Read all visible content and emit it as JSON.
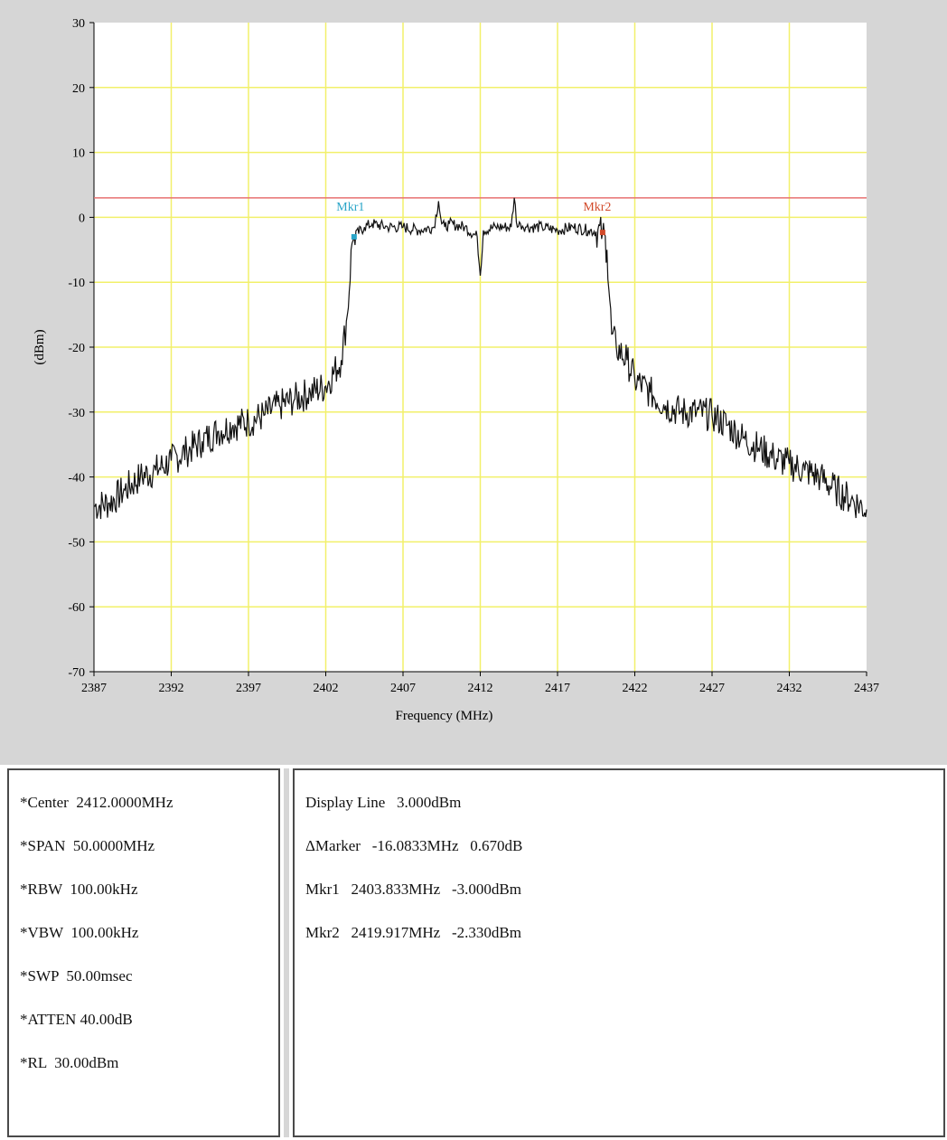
{
  "chart_data": {
    "type": "line",
    "xlabel": "Frequency (MHz)",
    "ylabel": "(dBm)",
    "xlim": [
      2387,
      2437
    ],
    "ylim": [
      -70,
      30
    ],
    "x_ticks": [
      "2387",
      "2392",
      "2397",
      "2402",
      "2407",
      "2412",
      "2417",
      "2422",
      "2427",
      "2432",
      "2437"
    ],
    "y_ticks": [
      "30",
      "20",
      "10",
      "0",
      "-10",
      "-20",
      "-30",
      "-40",
      "-50",
      "-60",
      "-70"
    ],
    "grid": true,
    "colors": {
      "grid": "#f2f06a",
      "trace": "#111111",
      "display_line": "#e87070",
      "marker1": "#2aa5c8",
      "marker2": "#d24a2a",
      "plot_bg": "#ffffff"
    },
    "display_line_dbm": 3.0,
    "markers": [
      {
        "label": "Mkr1",
        "x": 2403.833,
        "y": -3.0
      },
      {
        "label": "Mkr2",
        "x": 2419.917,
        "y": -2.33
      }
    ],
    "series": [
      {
        "x": [
          2387,
          2388,
          2389,
          2390,
          2391,
          2392,
          2393,
          2394,
          2395,
          2396,
          2397,
          2398,
          2399,
          2400,
          2401,
          2402,
          2403,
          2403.4,
          2403.7,
          2403.833,
          2404.5,
          2405,
          2406,
          2407,
          2408,
          2409,
          2409.3,
          2409.5,
          2409.7,
          2410,
          2411,
          2411.8,
          2412,
          2412.2,
          2413,
          2414,
          2414.2,
          2414.4,
          2414.6,
          2415,
          2416,
          2417,
          2418,
          2419,
          2419.917,
          2420.2,
          2420.5,
          2420.8,
          2421.5,
          2422,
          2423,
          2424,
          2425,
          2426,
          2427,
          2428,
          2429,
          2430,
          2431,
          2432,
          2433,
          2434,
          2435,
          2436,
          2437
        ],
        "y": [
          -44.5,
          -44,
          -42,
          -40,
          -39,
          -37.5,
          -36,
          -34.5,
          -33,
          -32,
          -31.5,
          -30.5,
          -29,
          -28,
          -27,
          -26,
          -22,
          -15,
          -4,
          -3.0,
          -1.5,
          -1,
          -1.5,
          -1.5,
          -2,
          -1.5,
          2.5,
          -1,
          -1.5,
          -1,
          -1.5,
          -3,
          -9,
          -2,
          -1.5,
          -1.5,
          3,
          -1.5,
          -1,
          -1.5,
          -1.5,
          -2,
          -1.5,
          -2,
          -2.33,
          -5,
          -18,
          -20,
          -22,
          -25,
          -27,
          -29,
          -30,
          -30,
          -30.5,
          -32,
          -34,
          -35.5,
          -37,
          -38,
          -39,
          -40,
          -42,
          -43.5,
          -45
        ]
      }
    ]
  },
  "settings": {
    "center": "*Center  2412.0000MHz",
    "span": "*SPAN  50.0000MHz",
    "rbw": "*RBW  100.00kHz",
    "vbw": "*VBW  100.00kHz",
    "swp": "*SWP  50.00msec",
    "atten": "*ATTEN 40.00dB",
    "rl": "*RL  30.00dBm"
  },
  "readout": {
    "display_line": "Display Line   3.000dBm",
    "delta_marker": "ΔMarker   -16.0833MHz   0.670dB",
    "mkr1": "Mkr1   2403.833MHz   -3.000dBm",
    "mkr2": "Mkr2   2419.917MHz   -2.330dBm"
  }
}
